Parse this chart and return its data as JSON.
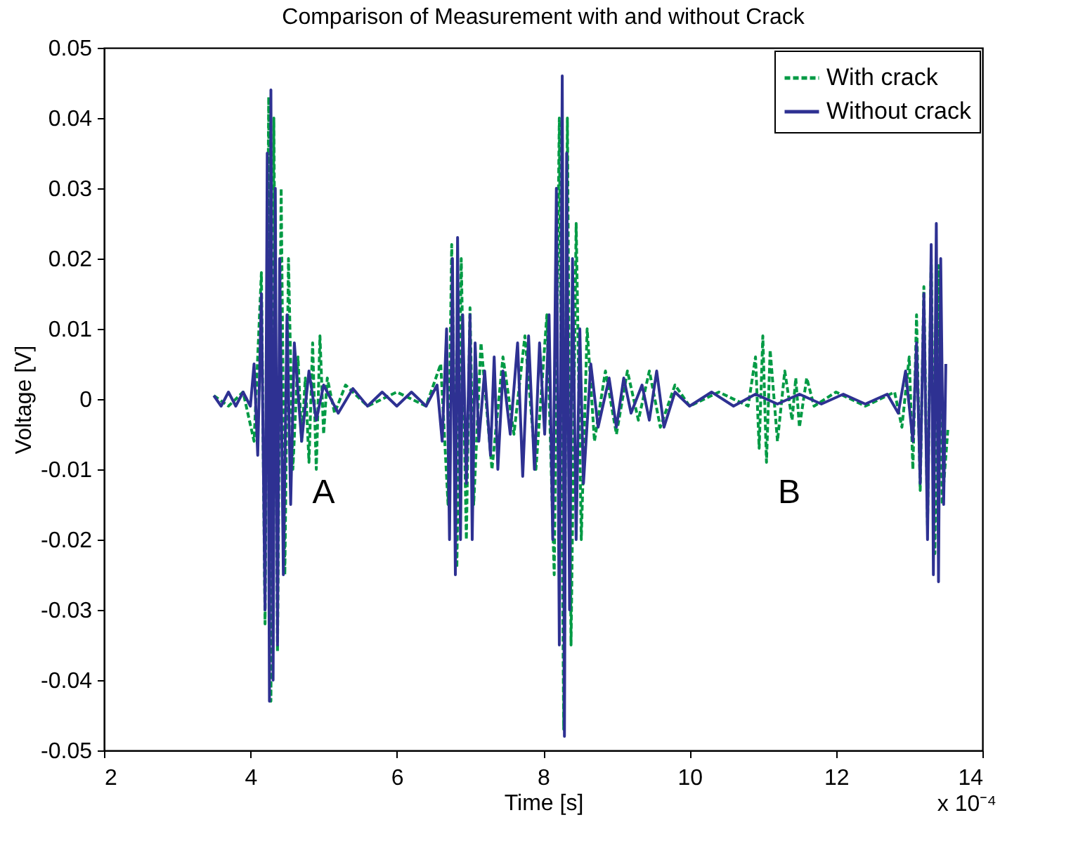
{
  "chart_data": {
    "type": "line",
    "title": "Comparison of Measurement with and without Crack",
    "xlabel": "Time [s]",
    "ylabel": "Voltage [V]",
    "xlim": [
      2,
      14
    ],
    "xticks": [
      2,
      4,
      6,
      8,
      10,
      12,
      14
    ],
    "ylim": [
      -0.05,
      0.05
    ],
    "yticks": [
      -0.05,
      -0.04,
      -0.03,
      -0.02,
      -0.01,
      0,
      0.01,
      0.02,
      0.03,
      0.04,
      0.05
    ],
    "grid": false,
    "legend": "top right",
    "annotations": [
      "A",
      "B",
      "x 10⁻⁴"
    ],
    "series": [
      {
        "name": "With crack",
        "color": "#009a44",
        "line_style": "dashed",
        "x": [
          3.5,
          3.7,
          3.9,
          4.05,
          4.15,
          4.2,
          4.25,
          4.28,
          4.32,
          4.37,
          4.42,
          4.47,
          4.52,
          4.58,
          4.65,
          4.7,
          4.75,
          4.8,
          4.85,
          4.9,
          4.95,
          5.0,
          5.05,
          5.15,
          5.3,
          5.6,
          6.0,
          6.4,
          6.6,
          6.7,
          6.75,
          6.82,
          6.88,
          6.95,
          7.0,
          7.05,
          7.15,
          7.3,
          7.45,
          7.6,
          7.75,
          7.9,
          8.05,
          8.15,
          8.22,
          8.28,
          8.33,
          8.38,
          8.45,
          8.52,
          8.6,
          8.7,
          8.85,
          9.0,
          9.15,
          9.3,
          9.45,
          9.6,
          9.8,
          10.0,
          10.4,
          10.8,
          10.9,
          10.95,
          11.0,
          11.05,
          11.1,
          11.2,
          11.3,
          11.4,
          11.45,
          11.5,
          11.6,
          11.7,
          12.0,
          12.4,
          12.8,
          12.9,
          13.0,
          13.05,
          13.1,
          13.15,
          13.2,
          13.25,
          13.3,
          13.35,
          13.4,
          13.45,
          13.53
        ],
        "values": [
          0.0005,
          -0.001,
          0.001,
          -0.006,
          0.018,
          -0.032,
          0.043,
          -0.043,
          0.04,
          -0.036,
          0.03,
          -0.025,
          0.02,
          -0.01,
          0.006,
          -0.006,
          0.003,
          -0.009,
          0.008,
          -0.01,
          0.009,
          -0.005,
          0.003,
          -0.002,
          0.002,
          -0.001,
          0.001,
          -0.001,
          0.005,
          -0.015,
          0.022,
          -0.024,
          0.02,
          -0.02,
          0.013,
          -0.015,
          0.008,
          -0.01,
          0.006,
          -0.005,
          0.009,
          -0.01,
          0.012,
          -0.025,
          0.04,
          -0.047,
          0.04,
          -0.035,
          0.025,
          -0.02,
          0.01,
          -0.006,
          0.004,
          -0.005,
          0.004,
          -0.003,
          0.004,
          -0.004,
          0.002,
          -0.001,
          0.001,
          -0.001,
          0.006,
          -0.007,
          0.009,
          -0.009,
          0.007,
          -0.006,
          0.004,
          -0.003,
          0.003,
          -0.004,
          0.003,
          -0.001,
          0.001,
          -0.001,
          0.001,
          -0.004,
          0.006,
          -0.01,
          0.012,
          -0.013,
          0.016,
          -0.018,
          0.02,
          -0.022,
          0.019,
          -0.015,
          -0.004
        ]
      },
      {
        "name": "Without crack",
        "color": "#2e3192",
        "line_style": "solid",
        "x": [
          3.5,
          3.6,
          3.7,
          3.8,
          3.9,
          4.0,
          4.05,
          4.1,
          4.15,
          4.2,
          4.23,
          4.26,
          4.28,
          4.31,
          4.34,
          4.37,
          4.4,
          4.45,
          4.5,
          4.55,
          4.6,
          4.7,
          4.8,
          4.9,
          5.0,
          5.2,
          5.4,
          5.6,
          5.8,
          6.0,
          6.2,
          6.4,
          6.55,
          6.62,
          6.68,
          6.72,
          6.76,
          6.8,
          6.83,
          6.87,
          6.9,
          6.95,
          7.0,
          7.03,
          7.07,
          7.12,
          7.2,
          7.28,
          7.33,
          7.38,
          7.45,
          7.55,
          7.65,
          7.72,
          7.8,
          7.88,
          7.95,
          8.02,
          8.08,
          8.13,
          8.18,
          8.22,
          8.26,
          8.29,
          8.32,
          8.36,
          8.4,
          8.45,
          8.5,
          8.55,
          8.65,
          8.75,
          8.9,
          9.0,
          9.1,
          9.2,
          9.35,
          9.45,
          9.55,
          9.65,
          9.8,
          10.0,
          10.3,
          10.6,
          10.9,
          11.2,
          11.5,
          11.8,
          12.1,
          12.4,
          12.7,
          12.85,
          12.95,
          13.05,
          13.1,
          13.15,
          13.2,
          13.25,
          13.3,
          13.33,
          13.37,
          13.4,
          13.43,
          13.47,
          13.5
        ],
        "values": [
          0.0005,
          -0.001,
          0.001,
          -0.001,
          0.001,
          -0.001,
          0.005,
          -0.008,
          0.015,
          -0.03,
          0.035,
          -0.043,
          0.044,
          -0.04,
          0.03,
          -0.035,
          0.02,
          -0.025,
          0.012,
          -0.015,
          0.008,
          -0.006,
          0.004,
          -0.003,
          0.002,
          -0.002,
          0.0015,
          -0.001,
          0.001,
          -0.001,
          0.001,
          -0.001,
          0.002,
          -0.006,
          0.01,
          -0.02,
          0.02,
          -0.025,
          0.023,
          -0.02,
          0.012,
          -0.012,
          0.012,
          -0.02,
          0.008,
          -0.006,
          0.004,
          -0.008,
          0.006,
          -0.01,
          0.004,
          -0.005,
          0.008,
          -0.011,
          0.009,
          -0.01,
          0.008,
          -0.005,
          0.012,
          -0.02,
          0.03,
          -0.035,
          0.046,
          -0.048,
          0.035,
          -0.03,
          0.02,
          -0.02,
          0.01,
          -0.012,
          0.005,
          -0.004,
          0.003,
          -0.004,
          0.003,
          -0.002,
          0.002,
          -0.003,
          0.004,
          -0.004,
          0.001,
          -0.001,
          0.001,
          -0.001,
          0.0007,
          -0.0007,
          0.0007,
          -0.0007,
          0.0007,
          -0.0007,
          0.0007,
          -0.002,
          0.004,
          -0.006,
          0.008,
          -0.012,
          0.015,
          -0.02,
          0.022,
          -0.025,
          0.025,
          -0.026,
          0.02,
          -0.015,
          0.005
        ]
      }
    ]
  }
}
